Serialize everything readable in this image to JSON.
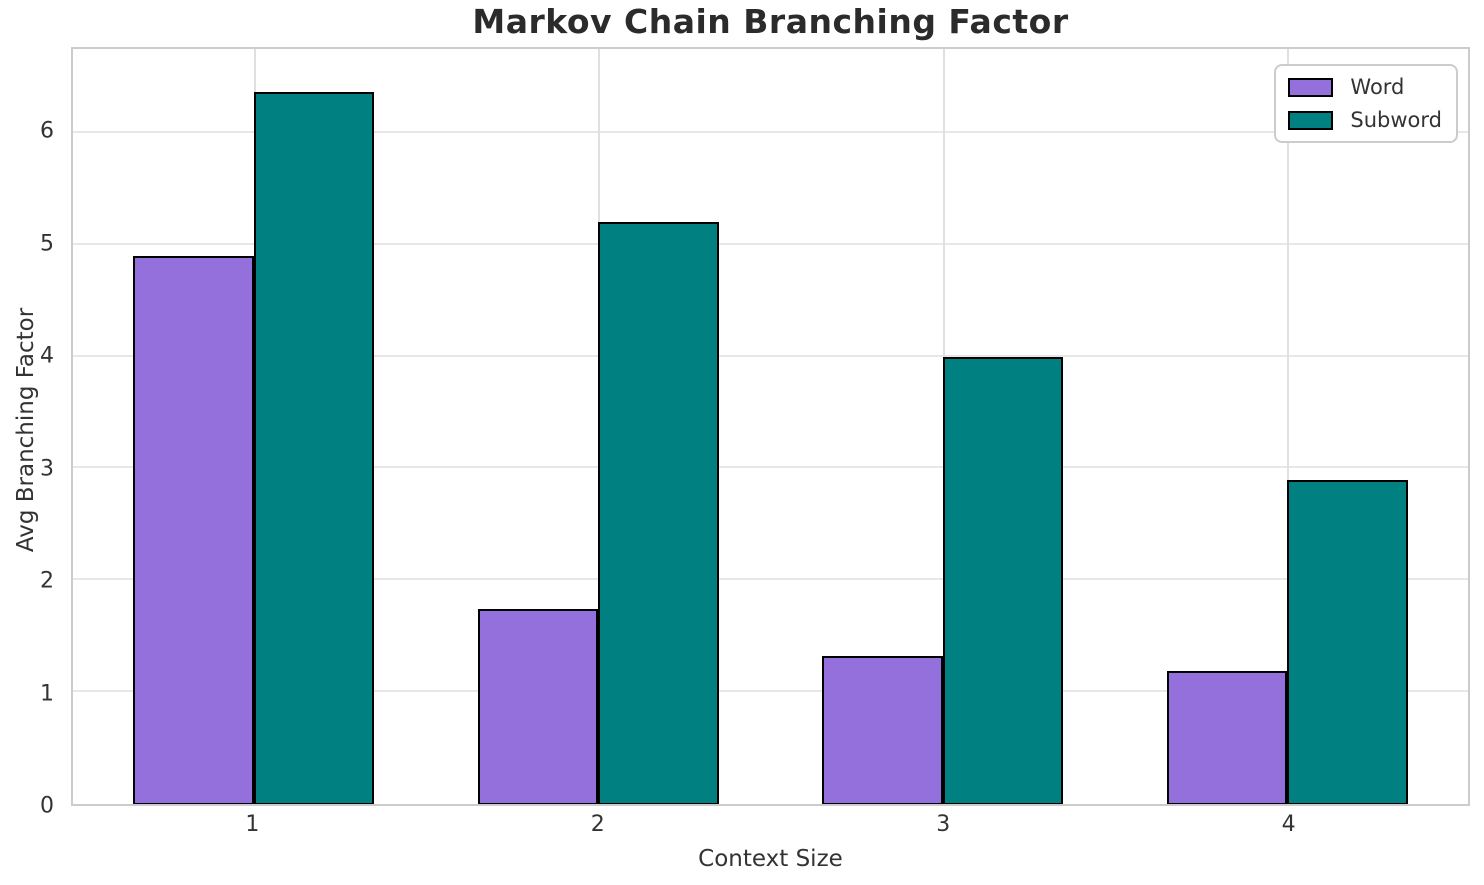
{
  "chart_data": {
    "type": "bar",
    "title": "Markov Chain Branching Factor",
    "xlabel": "Context Size",
    "ylabel": "Avg Branching Factor",
    "categories": [
      "1",
      "2",
      "3",
      "4"
    ],
    "series": [
      {
        "name": "Word",
        "color": "#9370DB",
        "values": [
          4.9,
          1.74,
          1.32,
          1.19
        ]
      },
      {
        "name": "Subword",
        "color": "#008080",
        "values": [
          6.37,
          5.2,
          4.0,
          2.9
        ]
      }
    ],
    "ylim": [
      0,
      6.75
    ],
    "yticks": [
      0,
      1,
      2,
      3,
      4,
      5,
      6
    ],
    "bar_edge_color": "#000000",
    "bar_width_fraction": 0.35,
    "x_axis_span": 4.05,
    "grid": "on",
    "legend_position": "top-right",
    "colors": {
      "grid_h": "#e7e7e7",
      "grid_v": "#e0e0e0",
      "spine": "#cccccc",
      "text": "#333333",
      "title_text": "#2b2b2b"
    }
  }
}
